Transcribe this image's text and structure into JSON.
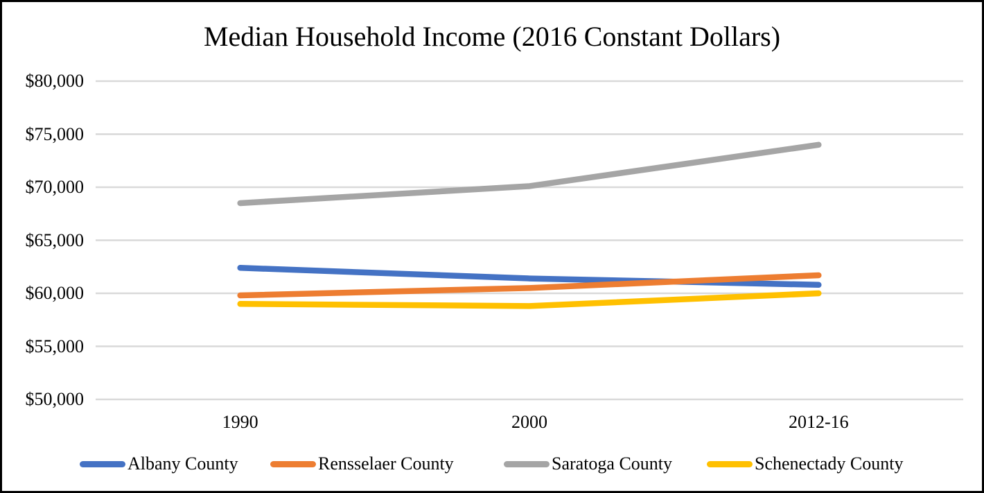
{
  "chart_data": {
    "type": "line",
    "title": "Median Household Income (2016 Constant Dollars)",
    "categories": [
      "1990",
      "2000",
      "2012-16"
    ],
    "series": [
      {
        "name": "Albany County",
        "color": "#4472C4",
        "values": [
          62400,
          61400,
          60800
        ]
      },
      {
        "name": "Rensselaer County",
        "color": "#ED7D31",
        "values": [
          59800,
          60500,
          61700
        ]
      },
      {
        "name": "Saratoga County",
        "color": "#A5A5A5",
        "values": [
          68500,
          70100,
          74000
        ]
      },
      {
        "name": "Schenectady County",
        "color": "#FFC000",
        "values": [
          59000,
          58800,
          60000
        ]
      }
    ],
    "y_axis": {
      "min": 50000,
      "max": 80000,
      "step": 5000,
      "tick_labels": [
        "$80,000",
        "$75,000",
        "$70,000",
        "$65,000",
        "$60,000",
        "$55,000",
        "$50,000"
      ]
    },
    "grid": "horizontal",
    "gridline_color": "#D9D9D9",
    "legend_position": "bottom",
    "background_color": "#FFFFFF",
    "border_color": "#000000",
    "text_color": "#000000"
  }
}
